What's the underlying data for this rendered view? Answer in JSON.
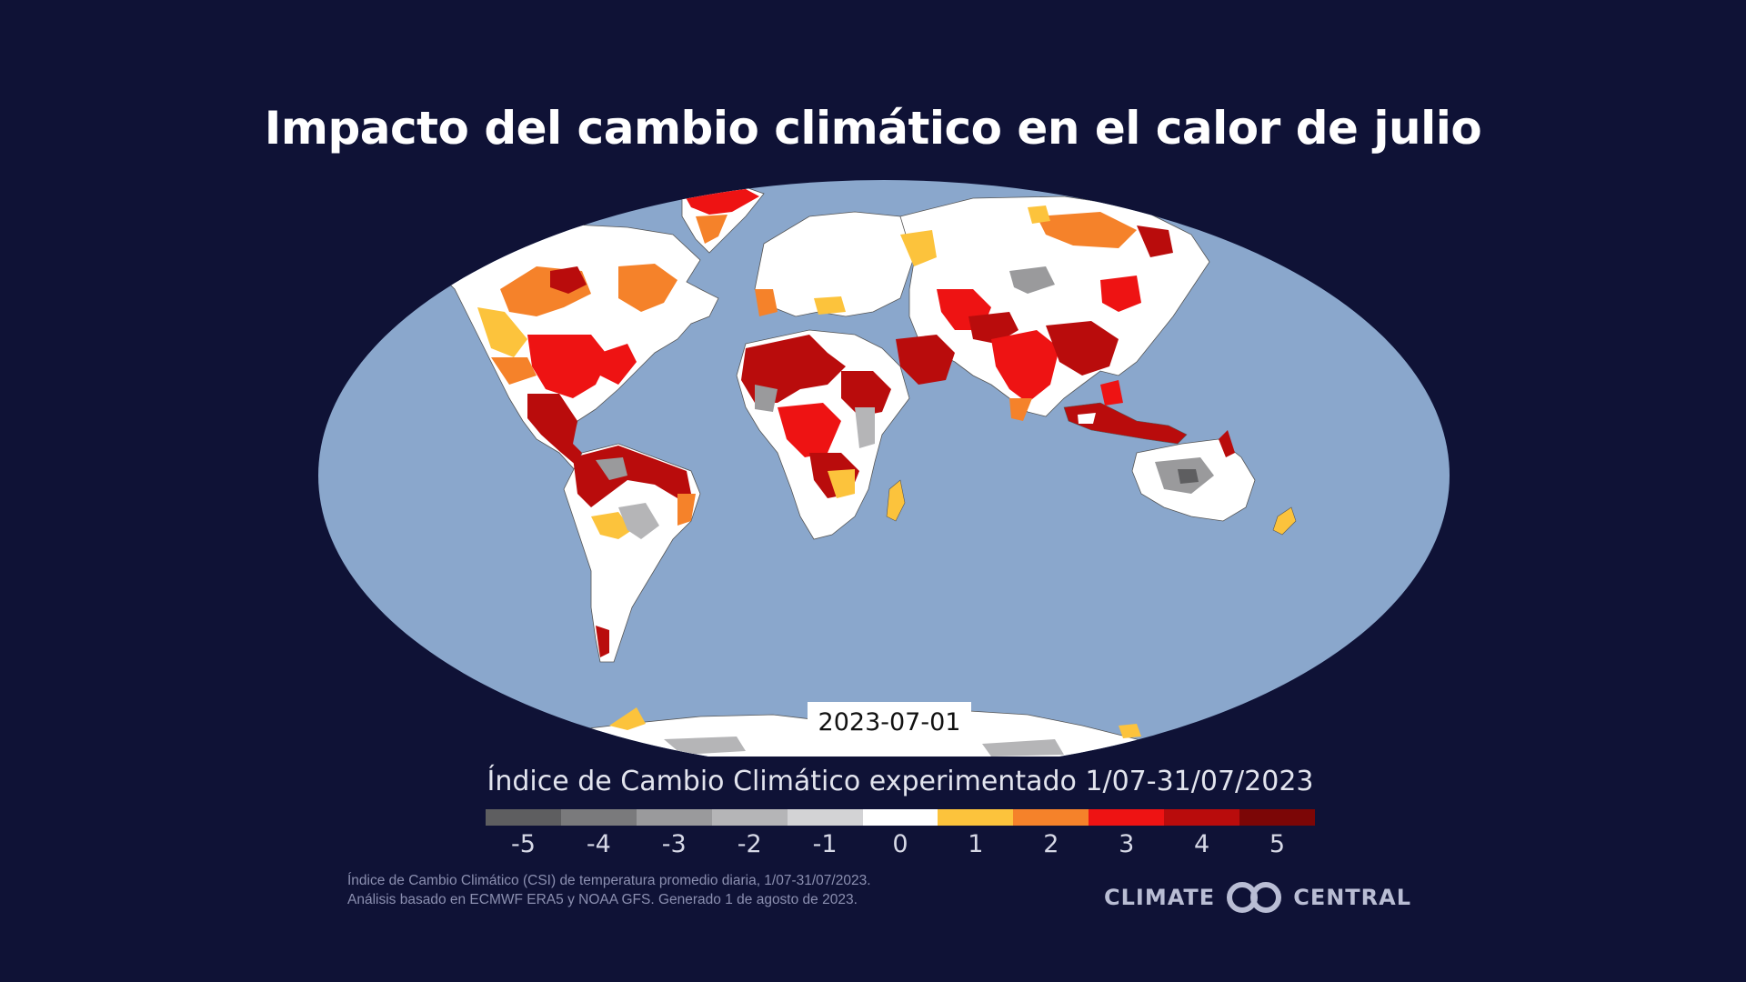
{
  "title": "Impacto del cambio climático en el calor de julio",
  "map": {
    "date_label": "2023-07-01",
    "ocean_color": "#8aa7cc",
    "land_color": "#ffffff",
    "border_color": "#444444"
  },
  "legend": {
    "title": "Índice de Cambio Climático experimentado 1/07-31/07/2023",
    "classes": [
      {
        "label": "-5",
        "color": "#5e5e60"
      },
      {
        "label": "-4",
        "color": "#7a7a7c"
      },
      {
        "label": "-3",
        "color": "#9a9a9c"
      },
      {
        "label": "-2",
        "color": "#b5b5b7"
      },
      {
        "label": "-1",
        "color": "#d3d3d5"
      },
      {
        "label": "0",
        "color": "#ffffff"
      },
      {
        "label": "1",
        "color": "#fcc33c"
      },
      {
        "label": "2",
        "color": "#f5822a"
      },
      {
        "label": "3",
        "color": "#ee1313"
      },
      {
        "label": "4",
        "color": "#b90c0c"
      },
      {
        "label": "5",
        "color": "#7c0606"
      }
    ]
  },
  "footnote": {
    "line1": "Índice de Cambio Climático (CSI) de temperatura promedio diaria, 1/07-31/07/2023.",
    "line2": "Análisis basado en ECMWF ERA5 y NOAA GFS. Generado 1 de agosto de 2023."
  },
  "brand": {
    "left": "CLIMATE",
    "right": "CENTRAL"
  }
}
